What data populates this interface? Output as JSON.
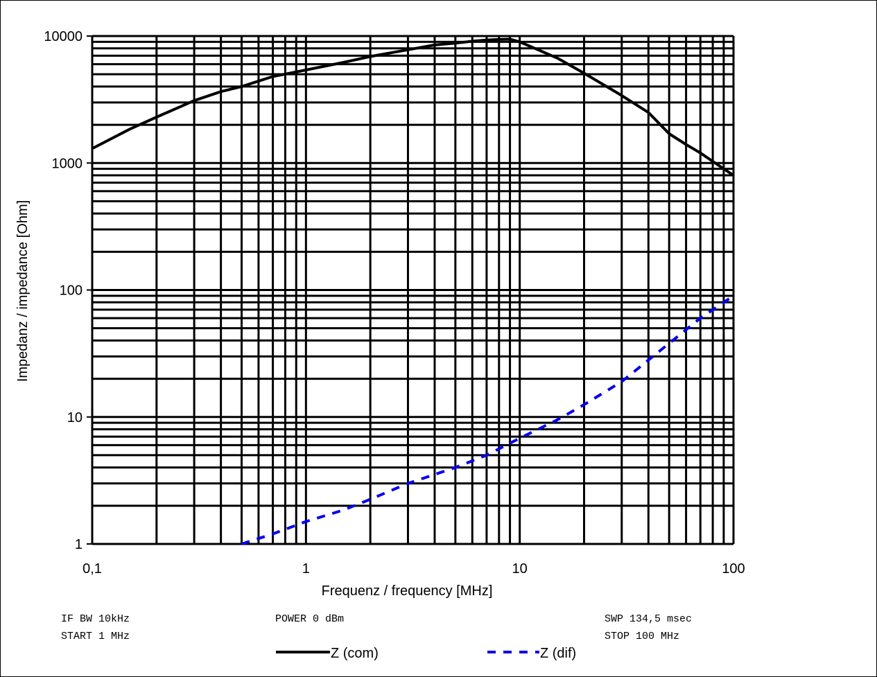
{
  "chart_data": {
    "type": "line",
    "xlabel": "Frequenz / frequency [MHz]",
    "ylabel": "Impedanz / impedance [Ohm]",
    "x_scale": "log",
    "y_scale": "log",
    "xlim": [
      0.1,
      100
    ],
    "ylim": [
      1,
      10000
    ],
    "x_tick_labels": [
      {
        "value": 0.1,
        "label": "0,1"
      },
      {
        "value": 1,
        "label": "1"
      },
      {
        "value": 10,
        "label": "10"
      },
      {
        "value": 100,
        "label": "100"
      }
    ],
    "y_tick_labels": [
      {
        "value": 1,
        "label": "1"
      },
      {
        "value": 10,
        "label": "10"
      },
      {
        "value": 100,
        "label": "100"
      },
      {
        "value": 1000,
        "label": "1000"
      },
      {
        "value": 10000,
        "label": "10000"
      }
    ],
    "grid": true,
    "legend_position": "bottom",
    "series": [
      {
        "name": "Z (com)",
        "color": "#000000",
        "style": "solid",
        "x": [
          0.1,
          0.15,
          0.2,
          0.3,
          0.4,
          0.5,
          0.7,
          1,
          1.5,
          2,
          3,
          4,
          5,
          6,
          7,
          8,
          9,
          10,
          15,
          20,
          30,
          40,
          50,
          60,
          70,
          80,
          90,
          100
        ],
        "y": [
          1300,
          1850,
          2300,
          3100,
          3650,
          4000,
          4800,
          5400,
          6200,
          6900,
          7800,
          8500,
          8800,
          9100,
          9300,
          9400,
          9450,
          9000,
          6700,
          5100,
          3400,
          2500,
          1700,
          1400,
          1200,
          1030,
          900,
          800
        ]
      },
      {
        "name": "Z (dif)",
        "color": "#0000EE",
        "style": "dashed",
        "x": [
          0.5,
          0.7,
          1,
          1.5,
          2,
          3,
          5,
          7,
          10,
          15,
          20,
          30,
          50,
          70,
          100
        ],
        "y": [
          1.0,
          1.2,
          1.5,
          1.85,
          2.25,
          3.0,
          4.0,
          5.0,
          6.8,
          9.5,
          12.5,
          19,
          38,
          60,
          90
        ]
      }
    ]
  },
  "info": {
    "if_bw": "IF BW 10kHz",
    "start": "START 1 MHz",
    "power": "POWER 0 dBm",
    "swp": "SWP 134,5 msec",
    "stop": "STOP 100 MHz"
  },
  "legend": {
    "com_label": "Z (com)",
    "dif_label": "Z (dif)"
  }
}
